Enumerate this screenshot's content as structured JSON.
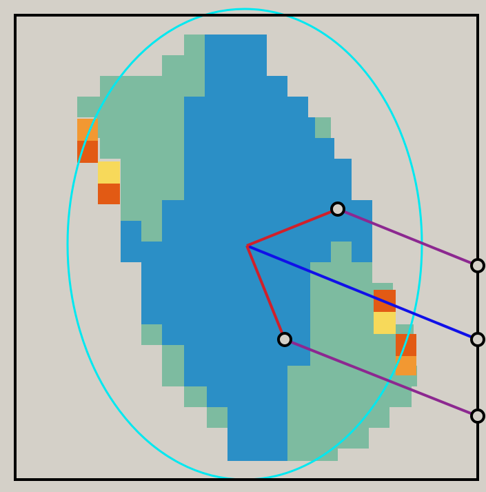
{
  "colors": {
    "background": "#d4d0c8",
    "frame": "#000000",
    "teal": "#7dbba0",
    "blue": "#2b8fc6",
    "orange": "#f29832",
    "red_orange": "#e25a14",
    "yellow": "#f7d95a",
    "ellipse": "#00e8f0",
    "red_line": "#d0202a",
    "blue_line": "#1010e8",
    "purple_line": "#8c2890",
    "handle_fill": "#d4d0c8",
    "handle_stroke": "#000000"
  },
  "icons": {
    "handle": "circle-handle-icon",
    "center": "pivot-center-icon"
  }
}
